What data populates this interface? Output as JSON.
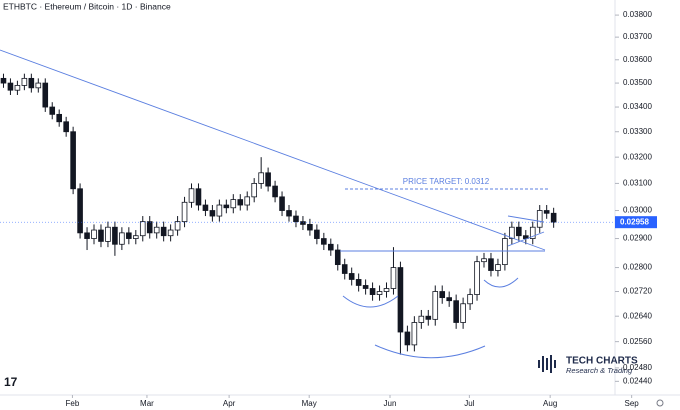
{
  "chart_data": {
    "type": "candlestick",
    "title": "ETHBTC · Ethereum / Bitcoin · 1D · Binance",
    "annotation": "PRICE TARGET: 0.0312",
    "brand": "TECH CHARTS",
    "brand_subtitle": "Research & Trading",
    "log_scale": true,
    "up_color": "#ffffff",
    "down_color": "#131722",
    "open": [
      0.0352,
      0.035,
      0.0347,
      0.0349,
      0.0352,
      0.0348,
      0.035,
      0.034,
      0.0337,
      0.0334,
      0.033,
      0.0308,
      0.0292,
      0.029,
      0.0293,
      0.0289,
      0.0294,
      0.0288,
      0.0292,
      0.029,
      0.0291,
      0.0296,
      0.0292,
      0.0294,
      0.0291,
      0.0293,
      0.0296,
      0.0303,
      0.0308,
      0.0302,
      0.03,
      0.0298,
      0.0302,
      0.0301,
      0.0304,
      0.0302,
      0.0305,
      0.031,
      0.0314,
      0.0309,
      0.0305,
      0.03,
      0.0298,
      0.0296,
      0.0295,
      0.0293,
      0.029,
      0.0288,
      0.0286,
      0.0281,
      0.0278,
      0.0276,
      0.0274,
      0.0273,
      0.0271,
      0.0272,
      0.0273,
      0.028,
      0.0259,
      0.0255,
      0.0262,
      0.0264,
      0.0263,
      0.0272,
      0.027,
      0.0269,
      0.0262,
      0.0268,
      0.0271,
      0.0282,
      0.0283,
      0.0279,
      0.0281,
      0.029,
      0.0294,
      0.0291,
      0.029,
      0.0294,
      0.03,
      0.0299
    ],
    "high": [
      0.0354,
      0.0352,
      0.0351,
      0.0354,
      0.0354,
      0.0352,
      0.0352,
      0.0342,
      0.0339,
      0.0336,
      0.0332,
      0.031,
      0.0294,
      0.0295,
      0.0295,
      0.0296,
      0.0296,
      0.0294,
      0.0294,
      0.0293,
      0.0298,
      0.0298,
      0.0296,
      0.0296,
      0.0295,
      0.0298,
      0.0305,
      0.031,
      0.031,
      0.0304,
      0.0302,
      0.0304,
      0.0304,
      0.0306,
      0.0306,
      0.0307,
      0.0312,
      0.032,
      0.0316,
      0.0311,
      0.0307,
      0.0302,
      0.03,
      0.0298,
      0.0297,
      0.0295,
      0.0292,
      0.029,
      0.0288,
      0.0283,
      0.028,
      0.0278,
      0.0276,
      0.0275,
      0.0274,
      0.0275,
      0.0287,
      0.0282,
      0.0261,
      0.0264,
      0.0266,
      0.0266,
      0.0274,
      0.0274,
      0.0272,
      0.0271,
      0.027,
      0.0273,
      0.0284,
      0.0285,
      0.0285,
      0.0283,
      0.0292,
      0.0296,
      0.0296,
      0.0293,
      0.0296,
      0.0302,
      0.0302,
      0.0301
    ],
    "low": [
      0.0348,
      0.0345,
      0.0345,
      0.0347,
      0.0346,
      0.0346,
      0.0338,
      0.0335,
      0.0332,
      0.0328,
      0.0306,
      0.029,
      0.0286,
      0.0288,
      0.0287,
      0.0287,
      0.0284,
      0.0286,
      0.0288,
      0.0288,
      0.0289,
      0.029,
      0.029,
      0.0289,
      0.0289,
      0.0291,
      0.0294,
      0.0301,
      0.03,
      0.0298,
      0.0296,
      0.0296,
      0.0299,
      0.0299,
      0.03,
      0.03,
      0.0303,
      0.0308,
      0.0307,
      0.0303,
      0.0298,
      0.0296,
      0.0294,
      0.0293,
      0.0291,
      0.0288,
      0.0286,
      0.0284,
      0.0279,
      0.0276,
      0.0274,
      0.0272,
      0.0271,
      0.0269,
      0.0269,
      0.027,
      0.0271,
      0.0252,
      0.0253,
      0.0253,
      0.026,
      0.0261,
      0.0261,
      0.0268,
      0.0267,
      0.026,
      0.026,
      0.0266,
      0.0269,
      0.028,
      0.0277,
      0.0277,
      0.0279,
      0.0288,
      0.0289,
      0.0288,
      0.0288,
      0.0292,
      0.0297,
      0.02938
    ],
    "close": [
      0.035,
      0.0347,
      0.0349,
      0.0352,
      0.0348,
      0.035,
      0.034,
      0.0337,
      0.0334,
      0.033,
      0.0308,
      0.0292,
      0.029,
      0.0293,
      0.0289,
      0.0294,
      0.0288,
      0.0292,
      0.029,
      0.0291,
      0.0296,
      0.0292,
      0.0294,
      0.0291,
      0.0293,
      0.0296,
      0.0303,
      0.0308,
      0.0302,
      0.03,
      0.0298,
      0.0302,
      0.0301,
      0.0304,
      0.0302,
      0.0305,
      0.031,
      0.0314,
      0.0309,
      0.0305,
      0.03,
      0.0298,
      0.0296,
      0.0295,
      0.0293,
      0.029,
      0.0288,
      0.0286,
      0.0281,
      0.0278,
      0.0276,
      0.0274,
      0.0273,
      0.0271,
      0.0272,
      0.0273,
      0.028,
      0.0259,
      0.0255,
      0.0262,
      0.0264,
      0.0263,
      0.0272,
      0.027,
      0.0269,
      0.0262,
      0.0268,
      0.0271,
      0.0282,
      0.0283,
      0.0279,
      0.0281,
      0.029,
      0.0294,
      0.0291,
      0.029,
      0.0294,
      0.03,
      0.0299,
      0.02958
    ],
    "xlim": [
      -0.5,
      91.4
    ],
    "xticks": [
      {
        "value": 9.9,
        "label": "Feb"
      },
      {
        "value": 20.6,
        "label": "Mar"
      },
      {
        "value": 32.4,
        "label": "Apr"
      },
      {
        "value": 43.9,
        "label": "May"
      },
      {
        "value": 55.5,
        "label": "Jun"
      },
      {
        "value": 66.9,
        "label": "Jul"
      },
      {
        "value": 78.5,
        "label": "Aug"
      },
      {
        "value": 90.2,
        "label": "Sep"
      }
    ],
    "ylim": [
      0.024,
      0.0387
    ],
    "yticks": [
      {
        "value": 0.038,
        "label": "0.03800"
      },
      {
        "value": 0.037,
        "label": "0.03700"
      },
      {
        "value": 0.036,
        "label": "0.03600"
      },
      {
        "value": 0.035,
        "label": "0.03500"
      },
      {
        "value": 0.034,
        "label": "0.03400"
      },
      {
        "value": 0.033,
        "label": "0.03300"
      },
      {
        "value": 0.032,
        "label": "0.03200"
      },
      {
        "value": 0.031,
        "label": "0.03100"
      },
      {
        "value": 0.03,
        "label": "0.03000"
      },
      {
        "value": 0.029,
        "label": "0.02900"
      },
      {
        "value": 0.028,
        "label": "0.02800"
      },
      {
        "value": 0.0272,
        "label": "0.02720"
      },
      {
        "value": 0.0264,
        "label": "0.02640"
      },
      {
        "value": 0.0256,
        "label": "0.02560"
      },
      {
        "value": 0.0248,
        "label": "0.02480"
      },
      {
        "value": 0.0244,
        "label": "0.02440"
      }
    ]
  }
}
